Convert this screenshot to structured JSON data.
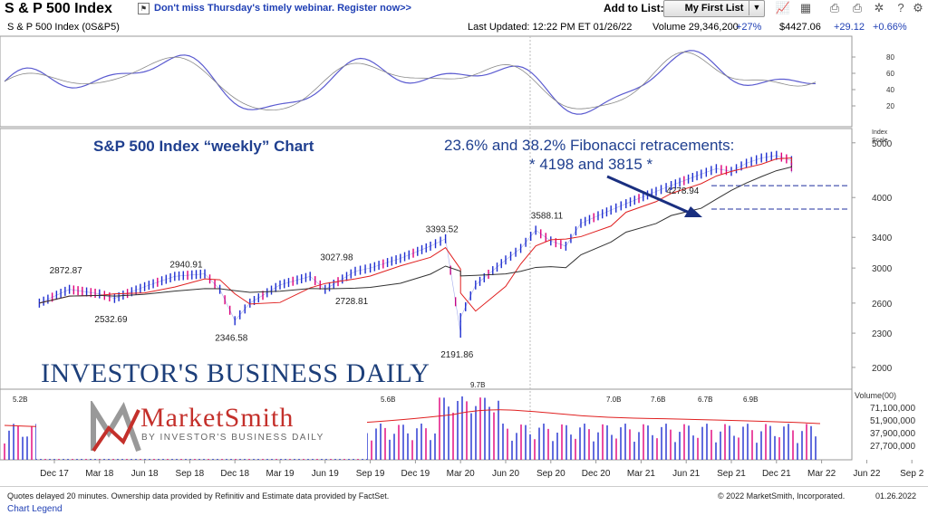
{
  "header": {
    "title": "S & P 500 Index",
    "promo_text": "Don't miss Thursday's timely webinar. Register now>>",
    "add_to_list_label": "Add to List:",
    "list_selected": "My First List"
  },
  "infobar": {
    "symbol": "S & P 500 Index   (0S&P5)",
    "last_updated": "Last Updated: 12:22 PM ET 01/26/22",
    "volume": "Volume 29,346,200",
    "volume_pct": "+27%",
    "price": "$4427.06",
    "change": "+29.12",
    "change_pct": "+0.66%"
  },
  "annotations": {
    "title": "S&P 500 Index “weekly” Chart",
    "fib_line1": "23.6% and 38.2% Fibonacci retracements:",
    "fib_line2": "* 4198 and 3815  *"
  },
  "footer": {
    "quotes_note": "Quotes delayed 20 minutes. Ownership data provided by Refinitiv and Estimate data provided by FactSet.",
    "copyright": "© 2022 MarketSmith, Incorporated.",
    "date": "01.26.2022",
    "legend_link": "Chart Legend"
  },
  "logos": {
    "ibd": "INVESTOR'S BUSINESS DAILY",
    "marketsmith": "MarketSmith",
    "marketsmith_sub": "BY INVESTOR'S BUSINESS DAILY"
  },
  "colors": {
    "up_bar": "#1f2fd0",
    "down_bar": "#e0007a",
    "ma_short": "#e02020",
    "ma_long": "#333333",
    "annotation": "#1f3f8f"
  },
  "chart_data": {
    "type": "line",
    "title": "S & P 500 Index",
    "x_ticks": [
      "Dec 17",
      "Mar 18",
      "Jun 18",
      "Sep 18",
      "Dec 18",
      "Mar 19",
      "Jun 19",
      "Sep 19",
      "Dec 19",
      "Mar 20",
      "Jun 20",
      "Sep 20",
      "Dec 20",
      "Mar 21",
      "Jun 21",
      "Sep 21",
      "Dec 21",
      "Mar 22",
      "Jun 22",
      "Sep 2"
    ],
    "price_axis_label": "Index Scale",
    "price_ticks": [
      2000,
      2300,
      2600,
      3000,
      3400,
      4000,
      5000
    ],
    "price_scale": "log",
    "ylim": [
      1830,
      5300
    ],
    "x": [
      "Nov 17",
      "Jan 18",
      "Mar 18",
      "Apr 18",
      "Jun 18",
      "Aug 18",
      "Oct 18",
      "Nov 18",
      "Dec 18",
      "Jan 19",
      "Mar 19",
      "May 19",
      "Jun 19",
      "Aug 19",
      "Sep 19",
      "Nov 19",
      "Jan 20",
      "Feb 20",
      "Mar 20",
      "Mar 20",
      "Apr 20",
      "Jun 20",
      "Jul 20",
      "Aug 20",
      "Sep 20",
      "Oct 20",
      "Nov 20",
      "Jan 21",
      "Feb 21",
      "Apr 21",
      "May 21",
      "Jul 21",
      "Aug 21",
      "Sep 21",
      "Oct 21",
      "Nov 21",
      "Dec 21",
      "Jan 22",
      "Jan 22"
    ],
    "series": [
      {
        "values": [
          2600,
          2750,
          2700,
          2650,
          2780,
          2900,
          2930,
          2750,
          2420,
          2600,
          2800,
          2900,
          2750,
          2960,
          3000,
          3120,
          3280,
          3380,
          2300,
          2450,
          2800,
          3100,
          3250,
          3500,
          3350,
          3280,
          3600,
          3800,
          3900,
          4100,
          4200,
          4400,
          4500,
          4450,
          4600,
          4700,
          4750,
          4650,
          4420
        ]
      }
    ],
    "callouts": [
      {
        "label": "2872.87",
        "value": 2872.87,
        "x": "Jan 18"
      },
      {
        "label": "2532.69",
        "value": 2532.69,
        "x": "Apr 18"
      },
      {
        "label": "2940.91",
        "value": 2940.91,
        "x": "Sep 18"
      },
      {
        "label": "2346.58",
        "value": 2346.58,
        "x": "Dec 18"
      },
      {
        "label": "3027.98",
        "value": 3027.98,
        "x": "Jul 19"
      },
      {
        "label": "2728.81",
        "value": 2728.81,
        "x": "Aug 19"
      },
      {
        "label": "3393.52",
        "value": 3393.52,
        "x": "Feb 20"
      },
      {
        "label": "2191.86",
        "value": 2191.86,
        "x": "Mar 20"
      },
      {
        "label": "3588.11",
        "value": 3588.11,
        "x": "Sep 20"
      },
      {
        "label": "4278.94",
        "value": 4278.94,
        "x": "Jun 21"
      }
    ],
    "fib_levels": [
      4198,
      3815
    ],
    "stochastic": {
      "ticks": [
        20,
        40,
        60,
        80
      ],
      "ylim": [
        0,
        100
      ]
    },
    "volume": {
      "axis_label": "Volume(00)",
      "ticks": [
        "71,100,000",
        "51,900,000",
        "37,900,000",
        "27,700,000"
      ],
      "bar_labels": [
        "5.2B",
        "5.6B",
        "9.7B",
        "7.0B",
        "7.6B",
        "6.7B",
        "6.9B"
      ]
    }
  }
}
